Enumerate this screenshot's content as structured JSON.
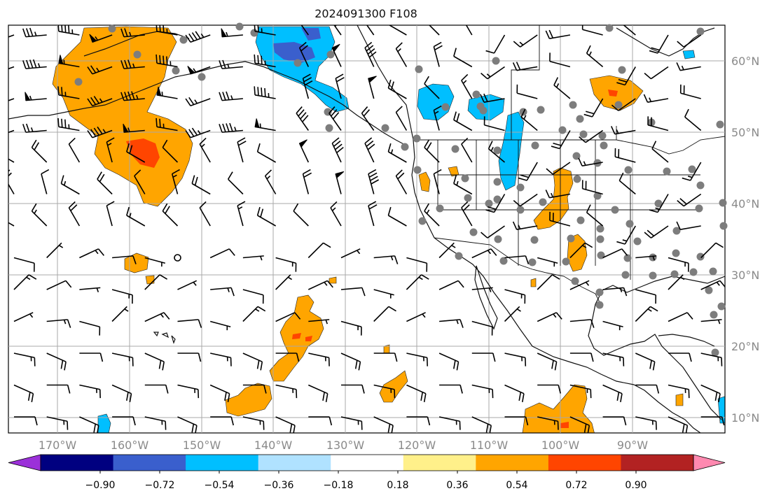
{
  "title": "2024091300 F108",
  "lon_labels": [
    "170°W",
    "160°W",
    "150°W",
    "140°W",
    "130°W",
    "120°W",
    "110°W",
    "100°W",
    "90°W"
  ],
  "lat_labels": [
    "60°N",
    "50°N",
    "40°N",
    "30°N",
    "20°N",
    "10°N"
  ],
  "colorbar": {
    "ticks": [
      "−0.90",
      "−0.72",
      "−0.54",
      "−0.36",
      "−0.18",
      "0.18",
      "0.36",
      "0.54",
      "0.72",
      "0.90"
    ],
    "colors": [
      "#9b30d9",
      "#000080",
      "#3a5fcd",
      "#00bfff",
      "#b0e2ff",
      "#ffffff",
      "#fff08a",
      "#ffa500",
      "#ff4500",
      "#b22222",
      "#ff89b0"
    ]
  }
}
